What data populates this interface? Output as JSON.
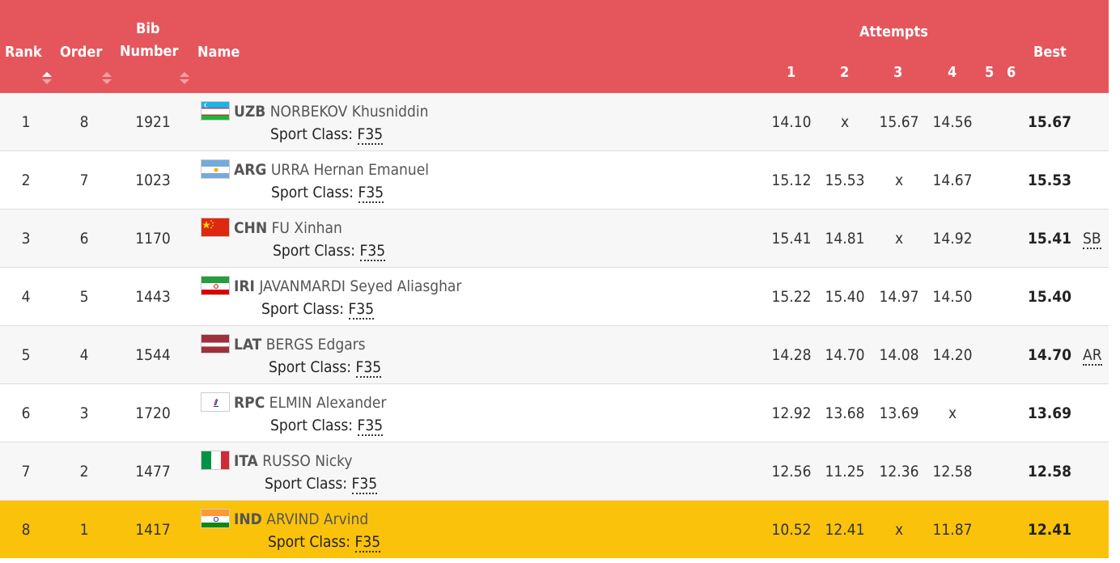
{
  "header": {
    "rank": "Rank",
    "order": "Order",
    "bib_line1": "Bib",
    "bib_line2": "Number",
    "name": "Name",
    "attempts": "Attempts",
    "attempt_nums": [
      "1",
      "2",
      "3",
      "4",
      "5",
      "6"
    ],
    "best": "Best"
  },
  "colors": {
    "header_bg": "#e5565c",
    "highlight_row": "#fac20a"
  },
  "sport_class_label": "Sport Class:",
  "rows": [
    {
      "rank": "1",
      "order": "8",
      "bib": "1921",
      "noc": "UZB",
      "athlete": "NORBEKOV Khusniddin",
      "sport_class": "F35",
      "attempts": [
        "14.10",
        "x",
        "15.67",
        "14.56"
      ],
      "best": "15.67",
      "record": "",
      "flag": "uzb"
    },
    {
      "rank": "2",
      "order": "7",
      "bib": "1023",
      "noc": "ARG",
      "athlete": "URRA Hernan Emanuel",
      "sport_class": "F35",
      "attempts": [
        "15.12",
        "15.53",
        "x",
        "14.67"
      ],
      "best": "15.53",
      "record": "",
      "flag": "arg"
    },
    {
      "rank": "3",
      "order": "6",
      "bib": "1170",
      "noc": "CHN",
      "athlete": "FU Xinhan",
      "sport_class": "F35",
      "attempts": [
        "15.41",
        "14.81",
        "x",
        "14.92"
      ],
      "best": "15.41",
      "record": "SB",
      "flag": "chn"
    },
    {
      "rank": "4",
      "order": "5",
      "bib": "1443",
      "noc": "IRI",
      "athlete": "JAVANMARDI Seyed Aliasghar",
      "sport_class": "F35",
      "attempts": [
        "15.22",
        "15.40",
        "14.97",
        "14.50"
      ],
      "best": "15.40",
      "record": "",
      "flag": "iri"
    },
    {
      "rank": "5",
      "order": "4",
      "bib": "1544",
      "noc": "LAT",
      "athlete": "BERGS Edgars",
      "sport_class": "F35",
      "attempts": [
        "14.28",
        "14.70",
        "14.08",
        "14.20"
      ],
      "best": "14.70",
      "record": "AR",
      "flag": "lat"
    },
    {
      "rank": "6",
      "order": "3",
      "bib": "1720",
      "noc": "RPC",
      "athlete": "ELMIN Alexander",
      "sport_class": "F35",
      "attempts": [
        "12.92",
        "13.68",
        "13.69",
        "x"
      ],
      "best": "13.69",
      "record": "",
      "flag": "rpc"
    },
    {
      "rank": "7",
      "order": "2",
      "bib": "1477",
      "noc": "ITA",
      "athlete": "RUSSO Nicky",
      "sport_class": "F35",
      "attempts": [
        "12.56",
        "11.25",
        "12.36",
        "12.58"
      ],
      "best": "12.58",
      "record": "",
      "flag": "ita"
    },
    {
      "rank": "8",
      "order": "1",
      "bib": "1417",
      "noc": "IND",
      "athlete": "ARVIND Arvind",
      "sport_class": "F35",
      "attempts": [
        "10.52",
        "12.41",
        "x",
        "11.87"
      ],
      "best": "12.41",
      "record": "",
      "flag": "ind"
    }
  ]
}
